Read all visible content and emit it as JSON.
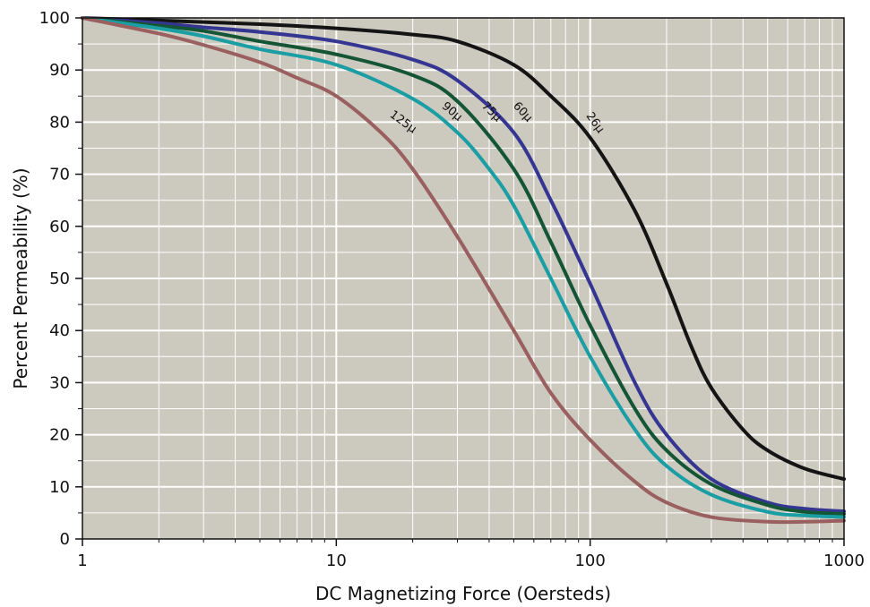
{
  "chart_data": {
    "type": "line",
    "xlabel": "DC Magnetizing Force (Oersteds)",
    "ylabel": "Percent Permeability (%)",
    "x_scale": "log",
    "xlim": [
      1,
      1000
    ],
    "ylim": [
      0,
      100
    ],
    "x_ticks": [
      1,
      10,
      100,
      1000
    ],
    "x_tick_labels": [
      "1",
      "10",
      "100",
      "1000"
    ],
    "y_ticks": [
      0,
      10,
      20,
      30,
      40,
      50,
      60,
      70,
      80,
      90,
      100
    ],
    "y_tick_labels": [
      "0",
      "10",
      "20",
      "30",
      "40",
      "50",
      "60",
      "70",
      "80",
      "90",
      "100"
    ],
    "grid": true,
    "colors": {
      "plot_bg": "#ccc9bf",
      "grid": "#ffffff",
      "frame": "#111111"
    },
    "series": [
      {
        "name": "26µ",
        "color": "#141414",
        "points": [
          [
            1,
            100
          ],
          [
            2,
            99.5
          ],
          [
            5,
            98.8
          ],
          [
            10,
            98
          ],
          [
            20,
            96.8
          ],
          [
            30,
            95.5
          ],
          [
            50,
            91
          ],
          [
            70,
            85
          ],
          [
            100,
            77
          ],
          [
            150,
            63
          ],
          [
            200,
            49
          ],
          [
            250,
            37
          ],
          [
            300,
            29
          ],
          [
            400,
            21
          ],
          [
            500,
            17
          ],
          [
            700,
            13.5
          ],
          [
            1000,
            11.5
          ]
        ]
      },
      {
        "name": "60µ",
        "color": "#353592",
        "points": [
          [
            1,
            100
          ],
          [
            2,
            99
          ],
          [
            3,
            98.2
          ],
          [
            5,
            97.3
          ],
          [
            10,
            95.5
          ],
          [
            20,
            92
          ],
          [
            30,
            88
          ],
          [
            50,
            78
          ],
          [
            70,
            65
          ],
          [
            100,
            49
          ],
          [
            150,
            30
          ],
          [
            200,
            20
          ],
          [
            300,
            11.5
          ],
          [
            500,
            7
          ],
          [
            700,
            5.8
          ],
          [
            1000,
            5.3
          ]
        ]
      },
      {
        "name": "75µ",
        "color": "#135535",
        "points": [
          [
            1,
            100
          ],
          [
            2,
            98.5
          ],
          [
            3,
            97.5
          ],
          [
            5,
            95.5
          ],
          [
            10,
            93
          ],
          [
            20,
            89
          ],
          [
            30,
            84
          ],
          [
            50,
            71
          ],
          [
            70,
            57
          ],
          [
            100,
            41
          ],
          [
            150,
            25
          ],
          [
            200,
            17
          ],
          [
            300,
            10.5
          ],
          [
            500,
            6.5
          ],
          [
            700,
            5.2
          ],
          [
            1000,
            4.8
          ]
        ]
      },
      {
        "name": "90µ",
        "color": "#1a9ea4",
        "points": [
          [
            1,
            100
          ],
          [
            2,
            98
          ],
          [
            3,
            96.5
          ],
          [
            5,
            94
          ],
          [
            10,
            91
          ],
          [
            20,
            84.5
          ],
          [
            30,
            78
          ],
          [
            40,
            71
          ],
          [
            50,
            64
          ],
          [
            70,
            50
          ],
          [
            100,
            35
          ],
          [
            150,
            21
          ],
          [
            200,
            14
          ],
          [
            300,
            8.5
          ],
          [
            500,
            5.2
          ],
          [
            700,
            4.5
          ],
          [
            1000,
            4.2
          ]
        ]
      },
      {
        "name": "125µ",
        "color": "#9a5f5f",
        "points": [
          [
            1,
            100
          ],
          [
            2,
            97
          ],
          [
            3,
            94.8
          ],
          [
            5,
            91.5
          ],
          [
            7,
            88.5
          ],
          [
            10,
            85
          ],
          [
            15,
            78
          ],
          [
            20,
            71
          ],
          [
            30,
            58
          ],
          [
            50,
            40
          ],
          [
            70,
            28
          ],
          [
            100,
            19
          ],
          [
            150,
            11
          ],
          [
            200,
            7
          ],
          [
            300,
            4.2
          ],
          [
            500,
            3.3
          ],
          [
            700,
            3.3
          ],
          [
            1000,
            3.5
          ]
        ]
      }
    ],
    "annotations": [
      {
        "text": "26µ",
        "x": 102,
        "y": 79.5,
        "angle": 54
      },
      {
        "text": "60µ",
        "x": 53,
        "y": 81.5,
        "angle": 47
      },
      {
        "text": "75µ",
        "x": 40,
        "y": 81.5,
        "angle": 44
      },
      {
        "text": "90µ",
        "x": 28,
        "y": 81.5,
        "angle": 40
      },
      {
        "text": "125µ",
        "x": 18,
        "y": 79.5,
        "angle": 36
      }
    ]
  }
}
